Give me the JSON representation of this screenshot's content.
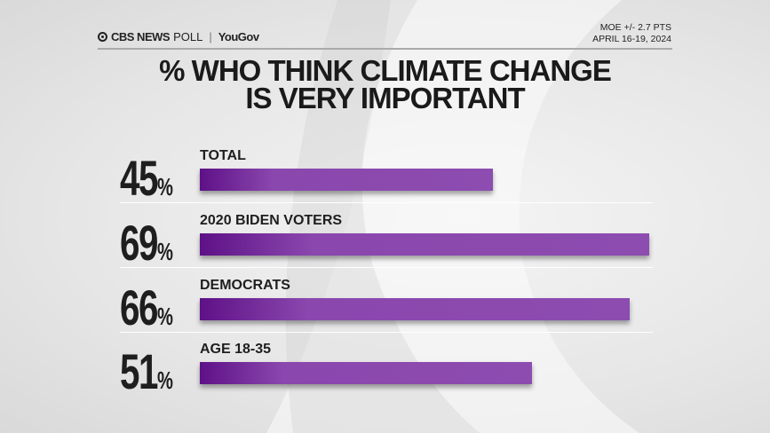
{
  "header": {
    "brand": "CBS NEWS",
    "poll": "POLL",
    "partner": "YouGov",
    "moe": "MOE +/- 2.7 PTS",
    "dates": "APRIL 16-19, 2024"
  },
  "chart_data": {
    "type": "bar",
    "orientation": "horizontal",
    "title": "% WHO THINK CLIMATE CHANGE IS VERY IMPORTANT",
    "title_lines": [
      "% WHO THINK CLIMATE CHANGE",
      "IS VERY IMPORTANT"
    ],
    "categories": [
      "TOTAL",
      "2020 BIDEN VOTERS",
      "DEMOCRATS",
      "AGE 18-35"
    ],
    "values": [
      45,
      69,
      66,
      51
    ],
    "unit": "%",
    "xlim": [
      0,
      69
    ],
    "bar_color": "#8d4cb0",
    "grid": false
  }
}
